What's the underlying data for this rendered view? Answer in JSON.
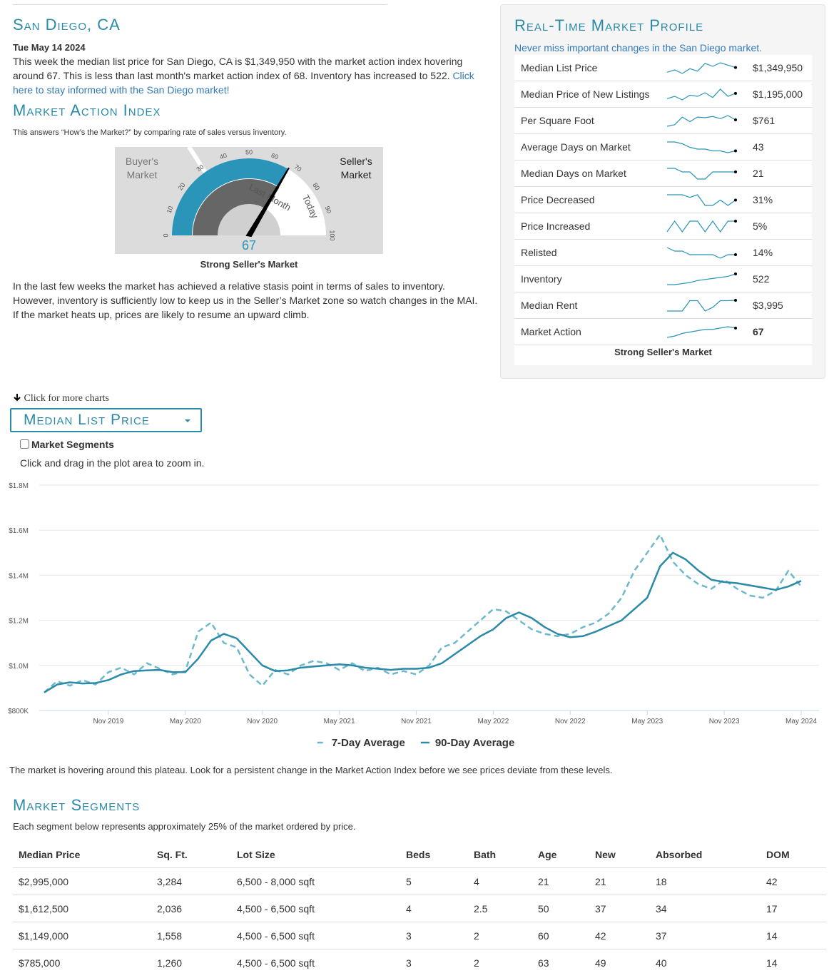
{
  "header": {
    "title": "San Diego, CA",
    "date": "Tue May 14 2024",
    "summary": "This week the median list price for San Diego, CA is $1,349,950 with the market action index hovering around 67. This is less than last month's market action index of 68. Inventory has increased to 522. ",
    "summary_link": "Click here to stay informed with the San Diego market!"
  },
  "mai": {
    "title": "Market Action Index",
    "description": "This answers “How’s the Market?” by comparing rate of sales versus inventory.",
    "gauge": {
      "value": 67,
      "last_month": 68,
      "ticks": [
        0,
        10,
        20,
        30,
        40,
        50,
        60,
        70,
        80,
        90,
        100
      ],
      "buyer_label": "Buyer's Market",
      "seller_label": "Seller's Market",
      "last_month_label": "Last Month",
      "today_label": "Today",
      "caption": "Strong Seller's Market"
    },
    "commentary": "In the last few weeks the market has achieved a relative stasis point in terms of sales to inventory. However, inventory is sufficiently low to keep us in the Seller’s Market zone so watch changes in the MAI. If the market heats up, prices are likely to resume an upward climb."
  },
  "profile": {
    "title": "Real-Time Market Profile",
    "subtitle": "Never miss important changes in the San Diego market.",
    "rows": [
      {
        "label": "Median List Price",
        "value": "$1,349,950",
        "trend": [
          1310000,
          1330000,
          1300000,
          1340000,
          1320000,
          1385000,
          1360000,
          1390000,
          1370000,
          1349950
        ]
      },
      {
        "label": "Median Price of New Listings",
        "value": "$1,195,000",
        "trend": [
          1150000,
          1170000,
          1140000,
          1180000,
          1170000,
          1200000,
          1160000,
          1230000,
          1170000,
          1195000
        ]
      },
      {
        "label": "Per Square Foot",
        "value": "$761",
        "trend": [
          740,
          745,
          770,
          755,
          770,
          768,
          772,
          765,
          775,
          761
        ]
      },
      {
        "label": "Average Days on Market",
        "value": "43",
        "trend": [
          48,
          48,
          47,
          45,
          44,
          44,
          43,
          43,
          42,
          43
        ]
      },
      {
        "label": "Median Days on Market",
        "value": "21",
        "trend": [
          22,
          22,
          21,
          21,
          19,
          19,
          21,
          21,
          21,
          21
        ]
      },
      {
        "label": "Price Decreased",
        "value": "31%",
        "trend": [
          33,
          33,
          33,
          32,
          33,
          29,
          29,
          31,
          29,
          31
        ]
      },
      {
        "label": "Price Increased",
        "value": "5%",
        "trend": [
          4,
          5,
          4,
          5,
          5,
          4,
          5,
          4,
          5,
          5
        ]
      },
      {
        "label": "Relisted",
        "value": "14%",
        "trend": [
          16,
          15,
          15,
          14,
          14,
          14,
          14,
          13,
          14,
          14
        ]
      },
      {
        "label": "Inventory",
        "value": "522",
        "trend": [
          470,
          470,
          475,
          480,
          490,
          495,
          500,
          505,
          510,
          522
        ]
      },
      {
        "label": "Median Rent",
        "value": "$3,995",
        "trend": [
          3850,
          3850,
          3850,
          3990,
          3990,
          3850,
          3900,
          3990,
          3990,
          3995
        ]
      },
      {
        "label": "Market Action",
        "value": "67",
        "trend": [
          60,
          61,
          63,
          64,
          65,
          66,
          66,
          67,
          68,
          67
        ]
      }
    ],
    "caption": "Strong Seller's Market"
  },
  "charts_link": "Click for more charts",
  "chart_selector": "Median List Price",
  "segments_toggle": "Market Segments",
  "zoom_hint": "Click and drag in the plot area to zoom in.",
  "chart_data": {
    "type": "line",
    "x": [
      "2019-06",
      "2019-07",
      "2019-08",
      "2019-09",
      "2019-10",
      "2019-11",
      "2019-12",
      "2020-01",
      "2020-02",
      "2020-03",
      "2020-04",
      "2020-05",
      "2020-06",
      "2020-07",
      "2020-08",
      "2020-09",
      "2020-10",
      "2020-11",
      "2020-12",
      "2021-01",
      "2021-02",
      "2021-03",
      "2021-04",
      "2021-05",
      "2021-06",
      "2021-07",
      "2021-08",
      "2021-09",
      "2021-10",
      "2021-11",
      "2021-12",
      "2022-01",
      "2022-02",
      "2022-03",
      "2022-04",
      "2022-05",
      "2022-06",
      "2022-07",
      "2022-08",
      "2022-09",
      "2022-10",
      "2022-11",
      "2022-12",
      "2023-01",
      "2023-02",
      "2023-03",
      "2023-04",
      "2023-05",
      "2023-06",
      "2023-07",
      "2023-08",
      "2023-09",
      "2023-10",
      "2023-11",
      "2023-12",
      "2024-01",
      "2024-02",
      "2024-03",
      "2024-04",
      "2024-05"
    ],
    "xlim": [
      "2019-06",
      "2024-06"
    ],
    "xticks": [
      {
        "value": "2019-11",
        "label": "Nov 2019"
      },
      {
        "value": "2020-05",
        "label": "May 2020"
      },
      {
        "value": "2020-11",
        "label": "Nov 2020"
      },
      {
        "value": "2021-05",
        "label": "May 2021"
      },
      {
        "value": "2021-11",
        "label": "Nov 2021"
      },
      {
        "value": "2022-05",
        "label": "May 2022"
      },
      {
        "value": "2022-11",
        "label": "Nov 2022"
      },
      {
        "value": "2023-05",
        "label": "May 2023"
      },
      {
        "value": "2023-11",
        "label": "Nov 2023"
      },
      {
        "value": "2024-05",
        "label": "May 2024"
      }
    ],
    "ylim": [
      800000,
      1800000
    ],
    "yticks": [
      {
        "value": 800000,
        "label": "$800K"
      },
      {
        "value": 1000000,
        "label": "$1.0M"
      },
      {
        "value": 1200000,
        "label": "$1.2M"
      },
      {
        "value": 1400000,
        "label": "$1.4M"
      },
      {
        "value": 1600000,
        "label": "$1.6M"
      },
      {
        "value": 1800000,
        "label": "$1.8M"
      }
    ],
    "grid": true,
    "legend": "bottom",
    "series": [
      {
        "name": "7-Day Average",
        "color": "#6db8cb",
        "line_style": "dashed",
        "values": [
          880000,
          930000,
          910000,
          935000,
          915000,
          970000,
          990000,
          960000,
          1010000,
          985000,
          960000,
          975000,
          1150000,
          1190000,
          1100000,
          1080000,
          960000,
          910000,
          980000,
          960000,
          1000000,
          1020000,
          1010000,
          980000,
          1010000,
          975000,
          990000,
          960000,
          975000,
          960000,
          1000000,
          1080000,
          1100000,
          1150000,
          1200000,
          1250000,
          1240000,
          1200000,
          1160000,
          1140000,
          1130000,
          1140000,
          1170000,
          1190000,
          1230000,
          1300000,
          1420000,
          1500000,
          1580000,
          1460000,
          1400000,
          1360000,
          1340000,
          1380000,
          1340000,
          1310000,
          1300000,
          1330000,
          1420000,
          1350000
        ]
      },
      {
        "name": "90-Day Average",
        "color": "#2a8aa8",
        "line_style": "solid",
        "values": [
          880000,
          915000,
          925000,
          920000,
          922000,
          935000,
          960000,
          975000,
          978000,
          980000,
          970000,
          970000,
          1030000,
          1110000,
          1140000,
          1120000,
          1060000,
          1000000,
          975000,
          978000,
          990000,
          995000,
          1000000,
          1005000,
          1000000,
          990000,
          985000,
          980000,
          985000,
          985000,
          990000,
          1010000,
          1050000,
          1090000,
          1130000,
          1160000,
          1210000,
          1235000,
          1210000,
          1170000,
          1140000,
          1125000,
          1130000,
          1150000,
          1175000,
          1200000,
          1250000,
          1300000,
          1440000,
          1500000,
          1470000,
          1420000,
          1380000,
          1370000,
          1365000,
          1355000,
          1345000,
          1335000,
          1350000,
          1375000
        ]
      }
    ]
  },
  "chart_note": "The market is hovering around this plateau. Look for a persistent change in the Market Action Index before we see prices deviate from these levels.",
  "segments": {
    "title": "Market Segments",
    "description": "Each segment below represents approximately 25% of the market ordered by price.",
    "columns": [
      "Median Price",
      "Sq. Ft.",
      "Lot Size",
      "Beds",
      "Bath",
      "Age",
      "New",
      "Absorbed",
      "DOM"
    ],
    "rows": [
      [
        "$2,995,000",
        "3,284",
        "6,500 - 8,000 sqft",
        "5",
        "4",
        "21",
        "21",
        "18",
        "42"
      ],
      [
        "$1,612,500",
        "2,036",
        "4,500 - 6,500 sqft",
        "4",
        "2.5",
        "50",
        "37",
        "34",
        "17"
      ],
      [
        "$1,149,000",
        "1,558",
        "4,500 - 6,500 sqft",
        "3",
        "2",
        "60",
        "42",
        "37",
        "14"
      ],
      [
        "$785,000",
        "1,260",
        "4,500 - 6,500 sqft",
        "3",
        "2",
        "63",
        "49",
        "40",
        "14"
      ]
    ]
  }
}
